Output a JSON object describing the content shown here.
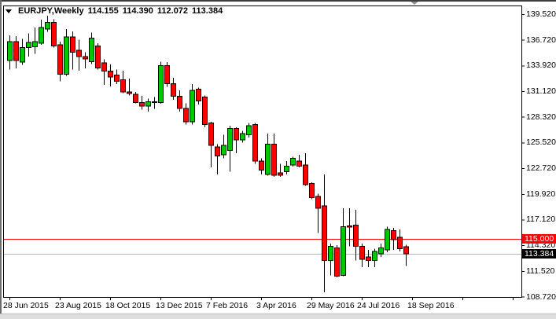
{
  "header": {
    "symbol": "EURJPY,Weekly",
    "open": "114.155",
    "high": "114.390",
    "low": "112.072",
    "close": "113.384"
  },
  "colors": {
    "up_fill": "#00c800",
    "down_fill": "#ff0000",
    "candle_outline": "#000000",
    "wick": "#000000",
    "plot_border": "#000000",
    "background": "#ffffff",
    "shift_marker": "#8f8f8f"
  },
  "chart_data": {
    "type": "candlestick",
    "title": "EURJPY,Weekly",
    "y_axis": {
      "min": 108.72,
      "max": 139.52,
      "tick_step": 2.8,
      "ticks": [
        "139.520",
        "136.720",
        "133.920",
        "131.120",
        "128.320",
        "125.520",
        "122.720",
        "119.920",
        "117.120",
        "114.320",
        "111.520",
        "108.720"
      ]
    },
    "x_axis": {
      "labels": [
        "28 Jun 2015",
        "23 Aug 2015",
        "18 Oct 2015",
        "13 Dec 2015",
        "7 Feb 2016",
        "3 Apr 2016",
        "29 May 2016",
        "24 Jul 2016",
        "18 Sep 2016"
      ],
      "weeks_per_tick": 8
    },
    "hlines": [
      {
        "price": 115.0,
        "label": "115.000",
        "line_color": "#ff0000",
        "label_bg": "#ff0000",
        "label_fg": "#ffffff"
      },
      {
        "price": 113.384,
        "label": "113.384",
        "line_color": "#b4b4b4",
        "label_bg": "#000000",
        "label_fg": "#ffffff"
      }
    ],
    "candles": [
      [
        134.45,
        137.2,
        133.5,
        136.5
      ],
      [
        136.5,
        137.1,
        133.6,
        134.45
      ],
      [
        134.3,
        136.8,
        134.0,
        135.9
      ],
      [
        135.9,
        137.4,
        134.9,
        136.45
      ],
      [
        135.95,
        138.05,
        135.2,
        136.5
      ],
      [
        136.35,
        138.9,
        136.2,
        138.05
      ],
      [
        137.9,
        139.35,
        137.6,
        138.6
      ],
      [
        138.6,
        138.95,
        135.9,
        136.05
      ],
      [
        136.2,
        136.5,
        132.2,
        132.95
      ],
      [
        132.95,
        137.9,
        132.8,
        137.05
      ],
      [
        137.05,
        137.65,
        133.5,
        135.35
      ],
      [
        135.6,
        136.75,
        133.35,
        134.9
      ],
      [
        134.9,
        135.35,
        133.6,
        134.65
      ],
      [
        134.35,
        137.5,
        134.1,
        136.9
      ],
      [
        136.05,
        136.35,
        133.5,
        133.65
      ],
      [
        134.2,
        134.6,
        131.8,
        133.3
      ],
      [
        133.3,
        134.05,
        131.65,
        132.65
      ],
      [
        132.9,
        133.5,
        131.9,
        132.2
      ],
      [
        132.35,
        133.35,
        130.9,
        131.05
      ],
      [
        131.05,
        132.5,
        130.65,
        130.85
      ],
      [
        130.8,
        131.05,
        129.8,
        129.9
      ],
      [
        129.9,
        130.6,
        129.1,
        129.5
      ],
      [
        129.5,
        130.3,
        128.9,
        129.95
      ],
      [
        129.95,
        130.5,
        129.2,
        129.9
      ],
      [
        129.9,
        134.35,
        129.75,
        133.9
      ],
      [
        133.9,
        134.3,
        131.6,
        131.95
      ],
      [
        131.95,
        132.6,
        130.2,
        130.55
      ],
      [
        130.55,
        131.2,
        128.9,
        129.25
      ],
      [
        129.25,
        129.8,
        127.5,
        127.8
      ],
      [
        127.8,
        131.9,
        127.5,
        131.2
      ],
      [
        131.35,
        131.5,
        129.65,
        130.05
      ],
      [
        130.5,
        130.65,
        127.2,
        127.5
      ],
      [
        127.65,
        127.8,
        122.8,
        125.2
      ],
      [
        125.05,
        125.35,
        122.05,
        124.05
      ],
      [
        124.2,
        126.35,
        123.8,
        125.2
      ],
      [
        124.65,
        127.35,
        122.35,
        127.05
      ],
      [
        127.05,
        127.2,
        124.35,
        125.8
      ],
      [
        125.8,
        126.8,
        125.5,
        126.5
      ],
      [
        126.35,
        127.65,
        126.05,
        127.35
      ],
      [
        127.5,
        127.65,
        123.2,
        123.5
      ],
      [
        123.5,
        123.8,
        122.05,
        122.5
      ],
      [
        122.05,
        126.5,
        121.9,
        125.35
      ],
      [
        125.35,
        126.5,
        121.8,
        121.95
      ],
      [
        122.2,
        123.2,
        121.8,
        121.95
      ],
      [
        122.35,
        123.5,
        122.05,
        122.95
      ],
      [
        123.05,
        123.95,
        122.9,
        123.8
      ],
      [
        123.5,
        124.2,
        122.8,
        122.95
      ],
      [
        123.05,
        124.35,
        120.8,
        120.95
      ],
      [
        121.05,
        121.2,
        119.35,
        119.5
      ],
      [
        119.65,
        119.95,
        115.65,
        118.35
      ],
      [
        118.6,
        122.05,
        109.2,
        112.65
      ],
      [
        112.65,
        114.5,
        111.05,
        114.2
      ],
      [
        114.05,
        114.35,
        110.8,
        110.95
      ],
      [
        111.05,
        118.35,
        110.95,
        116.35
      ],
      [
        116.45,
        118.35,
        114.2,
        116.3
      ],
      [
        116.5,
        118.2,
        112.65,
        114.2
      ],
      [
        114.2,
        114.5,
        111.95,
        112.8
      ],
      [
        113.05,
        113.8,
        111.95,
        112.65
      ],
      [
        112.65,
        113.95,
        111.95,
        113.65
      ],
      [
        113.4,
        114.5,
        113.05,
        114.05
      ],
      [
        113.8,
        116.35,
        113.55,
        116.05
      ],
      [
        115.9,
        116.2,
        113.8,
        114.95
      ],
      [
        115.2,
        116.05,
        113.65,
        113.95
      ],
      [
        114.155,
        114.39,
        112.072,
        113.384
      ]
    ]
  }
}
